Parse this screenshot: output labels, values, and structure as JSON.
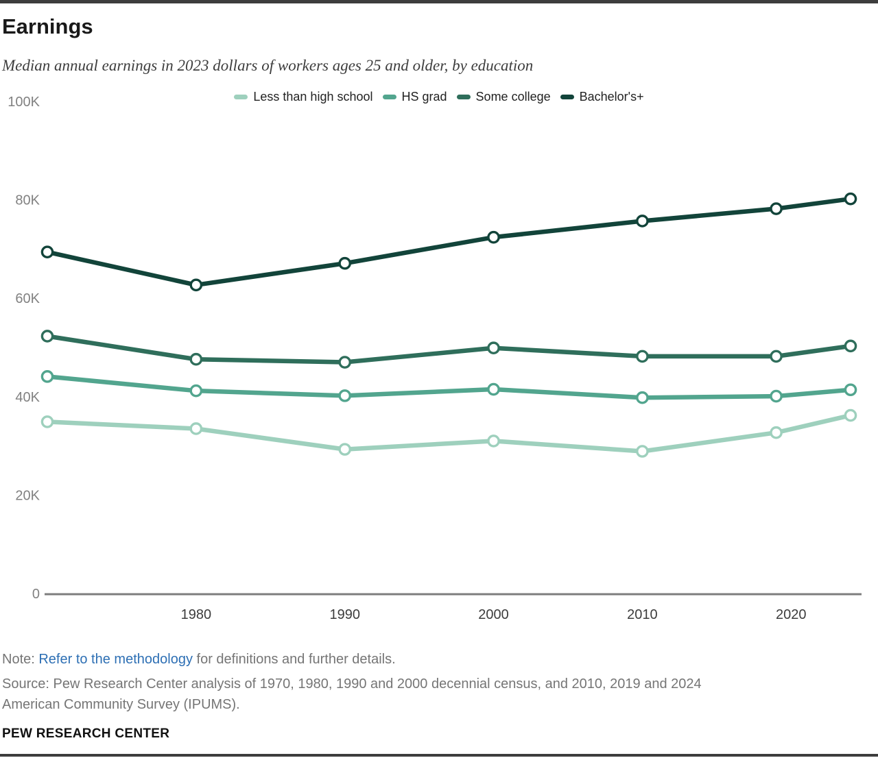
{
  "header": {
    "title": "Earnings",
    "subtitle": "Median annual earnings in 2023 dollars of workers ages 25 and older, by education"
  },
  "chart_data": {
    "type": "line",
    "x": [
      1970,
      1980,
      1990,
      2000,
      2010,
      2019,
      2024
    ],
    "xlim": [
      1970,
      2024
    ],
    "ylim": [
      0,
      100000
    ],
    "grid": false,
    "legend_position": "top",
    "x_ticks": [
      {
        "year": 1980,
        "label": "1980"
      },
      {
        "year": 1990,
        "label": "1990"
      },
      {
        "year": 2000,
        "label": "2000"
      },
      {
        "year": 2010,
        "label": "2010"
      },
      {
        "year": 2020,
        "label": "2020"
      }
    ],
    "y_ticks": [
      {
        "value": 0,
        "label": "0"
      },
      {
        "value": 20000,
        "label": "20K"
      },
      {
        "value": 40000,
        "label": "40K"
      },
      {
        "value": 60000,
        "label": "60K"
      },
      {
        "value": 80000,
        "label": "80K"
      },
      {
        "value": 100000,
        "label": "100K"
      }
    ],
    "series": [
      {
        "name": "Less than high school",
        "color": "#9ed0bd",
        "values": [
          34900,
          33500,
          29300,
          31000,
          28900,
          32700,
          36200
        ]
      },
      {
        "name": "HS grad",
        "color": "#52a58e",
        "values": [
          44100,
          41200,
          40200,
          41500,
          39800,
          40100,
          41400
        ]
      },
      {
        "name": "Some college",
        "color": "#2f6e5b",
        "values": [
          52300,
          47600,
          47000,
          49900,
          48200,
          48200,
          50300
        ]
      },
      {
        "name": "Bachelor's+",
        "color": "#12443a",
        "values": [
          69400,
          62700,
          67100,
          72400,
          75700,
          78200,
          80200
        ]
      }
    ],
    "title": "Earnings",
    "xlabel": "",
    "ylabel": ""
  },
  "footer": {
    "note_prefix": "Note: ",
    "note_link": "Refer to the methodology",
    "note_suffix": " for definitions and further details.",
    "source_line1": "Source: Pew Research Center analysis of 1970, 1980, 1990 and 2000 decennial census, and 2010, 2019 and 2024",
    "source_line2": "American Community Survey (IPUMS).",
    "branding": "PEW RESEARCH CENTER"
  },
  "colors": {
    "accent_link": "#2d6fb4",
    "axis_line": "#7d7d7d",
    "y_tick_label": "#818181",
    "x_tick_label": "#3c3c3c",
    "rule": "#3d3d3d"
  }
}
